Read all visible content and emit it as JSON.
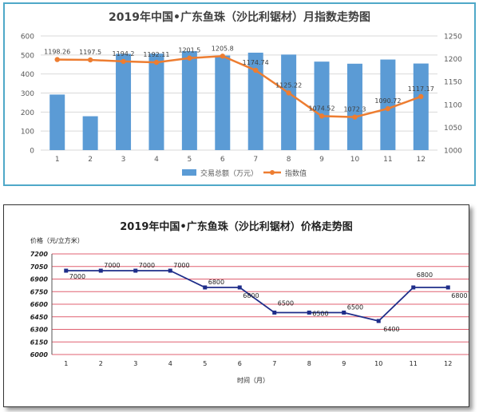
{
  "chart_data": [
    {
      "type": "bar",
      "title": "2019年中国•广东鱼珠（沙比利锯材）月指数走势图",
      "categories": [
        "1",
        "2",
        "3",
        "4",
        "5",
        "6",
        "7",
        "8",
        "9",
        "10",
        "11",
        "12"
      ],
      "series": [
        {
          "name": "交易总额（万元）",
          "type": "bar",
          "axis": "left",
          "values": [
            292,
            178,
            506,
            507,
            520,
            497,
            512,
            502,
            465,
            454,
            476,
            455
          ]
        },
        {
          "name": "指数值",
          "type": "line",
          "axis": "right",
          "values": [
            1198.26,
            1197.5,
            1194.2,
            1192.11,
            1201.5,
            1205.8,
            1174.74,
            1125.22,
            1074.52,
            1072.3,
            1090.72,
            1117.17
          ],
          "labels": [
            "1198.26",
            "1197.5",
            "1194.2",
            "1192.11",
            "1201.5",
            "1205.8",
            "1174.74",
            "1125.22",
            "1074.52",
            "1072.3",
            "1090.72",
            "1117.17"
          ]
        }
      ],
      "y_left": {
        "range": [
          0,
          600
        ],
        "ticks": [
          "0",
          "100",
          "200",
          "300",
          "400",
          "500",
          "600"
        ]
      },
      "y_right": {
        "range": [
          1000,
          1250
        ],
        "ticks": [
          "1000",
          "1050",
          "1100",
          "1150",
          "1200",
          "1250"
        ]
      },
      "legend_position": "bottom",
      "grid": true,
      "colors": {
        "bar": "#5b9bd5",
        "line": "#ed7d31",
        "frame": "#4fa8c8"
      }
    },
    {
      "type": "line",
      "title": "2019年中国•广东鱼珠（沙比利锯材）价格走势图",
      "ylabel": "价格（元/立方米）",
      "xlabel": "时间（月）",
      "categories": [
        "1",
        "2",
        "3",
        "4",
        "5",
        "6",
        "7",
        "8",
        "9",
        "10",
        "11",
        "12"
      ],
      "series": [
        {
          "name": "",
          "values": [
            7000,
            7000,
            7000,
            7000,
            6800,
            6800,
            6500,
            6500,
            6500,
            6400,
            6800,
            6800
          ],
          "labels": [
            "7000",
            "7000",
            "7000",
            "7000",
            "6800",
            "6800",
            "6500",
            "6500",
            "6500",
            "6400",
            "6800",
            "6800"
          ]
        }
      ],
      "y": {
        "range": [
          6000,
          7200
        ],
        "ticks": [
          "6000",
          "6150",
          "6300",
          "6450",
          "6600",
          "6750",
          "6900",
          "7050",
          "7200"
        ]
      },
      "grid": true,
      "colors": {
        "line": "#1f2e8a",
        "grid": "#e06070"
      }
    }
  ]
}
